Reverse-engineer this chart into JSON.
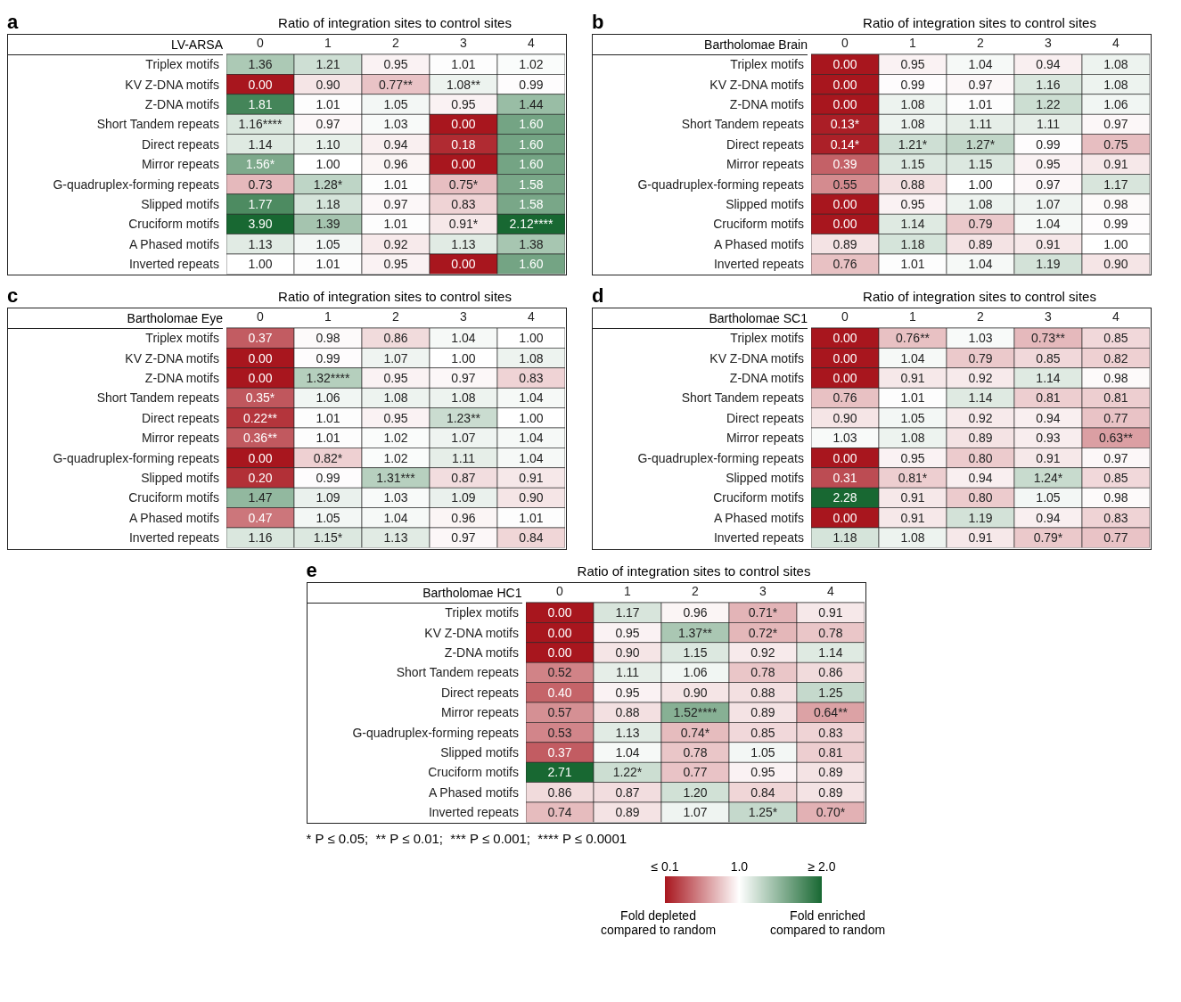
{
  "chart_data": [
    {
      "type": "heatmap",
      "title": "Ratio of integration sites to control sites",
      "ylabel": "LV-ARSA",
      "annotations": [
        "a"
      ],
      "categories": [
        "0",
        "1",
        "2",
        "3",
        "4"
      ],
      "y_categories": [
        "Triplex motifs",
        "KV Z-DNA motifs",
        "Z-DNA motifs",
        "Short Tandem repeats",
        "Direct repeats",
        "Mirror repeats",
        "G-quadruplex-forming repeats",
        "Slipped motifs",
        "Cruciform motifs",
        "A Phased motifs",
        "Inverted repeats"
      ],
      "cells": [
        [
          1.36,
          1.21,
          0.95,
          1.01,
          1.02
        ],
        [
          0.0,
          0.9,
          0.77,
          1.08,
          0.99
        ],
        [
          1.81,
          1.01,
          1.05,
          0.95,
          1.44
        ],
        [
          1.16,
          0.97,
          1.03,
          0.0,
          1.6
        ],
        [
          1.14,
          1.1,
          0.94,
          0.18,
          1.6
        ],
        [
          1.56,
          1.0,
          0.96,
          0.0,
          1.6
        ],
        [
          0.73,
          1.28,
          1.01,
          0.75,
          1.58
        ],
        [
          1.77,
          1.18,
          0.97,
          0.83,
          1.58
        ],
        [
          3.9,
          1.39,
          1.01,
          0.91,
          2.12
        ],
        [
          1.13,
          1.05,
          0.92,
          1.13,
          1.38
        ],
        [
          1.0,
          1.01,
          0.95,
          0.0,
          1.6
        ]
      ],
      "cell_labels": [
        [
          "1.36",
          "1.21",
          "0.95",
          "1.01",
          "1.02"
        ],
        [
          "0.00",
          "0.90",
          "0.77**",
          "1.08**",
          "0.99"
        ],
        [
          "1.81",
          "1.01",
          "1.05",
          "0.95",
          "1.44"
        ],
        [
          "1.16****",
          "0.97",
          "1.03",
          "0.00",
          "1.60"
        ],
        [
          "1.14",
          "1.10",
          "0.94",
          "0.18",
          "1.60"
        ],
        [
          "1.56*",
          "1.00",
          "0.96",
          "0.00",
          "1.60"
        ],
        [
          "0.73",
          "1.28*",
          "1.01",
          "0.75*",
          "1.58"
        ],
        [
          "1.77",
          "1.18",
          "0.97",
          "0.83",
          "1.58"
        ],
        [
          "3.90",
          "1.39",
          "1.01",
          "0.91*",
          "2.12****"
        ],
        [
          "1.13",
          "1.05",
          "0.92",
          "1.13",
          "1.38"
        ],
        [
          "1.00",
          "1.01",
          "0.95",
          "0.00",
          "1.60"
        ]
      ]
    },
    {
      "type": "heatmap",
      "title": "Ratio of integration sites to control sites",
      "ylabel": "Bartholomae Brain",
      "annotations": [
        "b"
      ],
      "categories": [
        "0",
        "1",
        "2",
        "3",
        "4"
      ],
      "y_categories": [
        "Triplex motifs",
        "KV Z-DNA motifs",
        "Z-DNA motifs",
        "Short Tandem repeats",
        "Direct repeats",
        "Mirror repeats",
        "G-quadruplex-forming repeats",
        "Slipped motifs",
        "Cruciform motifs",
        "A Phased motifs",
        "Inverted repeats"
      ],
      "cells": [
        [
          0.0,
          0.95,
          1.04,
          0.94,
          1.08
        ],
        [
          0.0,
          0.99,
          0.97,
          1.16,
          1.08
        ],
        [
          0.0,
          1.08,
          1.01,
          1.22,
          1.06
        ],
        [
          0.13,
          1.08,
          1.11,
          1.11,
          0.97
        ],
        [
          0.14,
          1.21,
          1.27,
          0.99,
          0.75
        ],
        [
          0.39,
          1.15,
          1.15,
          0.95,
          0.91
        ],
        [
          0.55,
          0.88,
          1.0,
          0.97,
          1.17
        ],
        [
          0.0,
          0.95,
          1.08,
          1.07,
          0.98
        ],
        [
          0.0,
          1.14,
          0.79,
          1.04,
          0.99
        ],
        [
          0.89,
          1.18,
          0.89,
          0.91,
          1.0
        ],
        [
          0.76,
          1.01,
          1.04,
          1.19,
          0.9
        ]
      ],
      "cell_labels": [
        [
          "0.00",
          "0.95",
          "1.04",
          "0.94",
          "1.08"
        ],
        [
          "0.00",
          "0.99",
          "0.97",
          "1.16",
          "1.08"
        ],
        [
          "0.00",
          "1.08",
          "1.01",
          "1.22",
          "1.06"
        ],
        [
          "0.13*",
          "1.08",
          "1.11",
          "1.11",
          "0.97"
        ],
        [
          "0.14*",
          "1.21*",
          "1.27*",
          "0.99",
          "0.75"
        ],
        [
          "0.39",
          "1.15",
          "1.15",
          "0.95",
          "0.91"
        ],
        [
          "0.55",
          "0.88",
          "1.00",
          "0.97",
          "1.17"
        ],
        [
          "0.00",
          "0.95",
          "1.08",
          "1.07",
          "0.98"
        ],
        [
          "0.00",
          "1.14",
          "0.79",
          "1.04",
          "0.99"
        ],
        [
          "0.89",
          "1.18",
          "0.89",
          "0.91",
          "1.00"
        ],
        [
          "0.76",
          "1.01",
          "1.04",
          "1.19",
          "0.90"
        ]
      ]
    },
    {
      "type": "heatmap",
      "title": "Ratio of integration sites to control sites",
      "ylabel": "Bartholomae Eye",
      "annotations": [
        "c"
      ],
      "categories": [
        "0",
        "1",
        "2",
        "3",
        "4"
      ],
      "y_categories": [
        "Triplex motifs",
        "KV Z-DNA motifs",
        "Z-DNA motifs",
        "Short Tandem repeats",
        "Direct repeats",
        "Mirror repeats",
        "G-quadruplex-forming repeats",
        "Slipped motifs",
        "Cruciform motifs",
        "A Phased motifs",
        "Inverted repeats"
      ],
      "cells": [
        [
          0.37,
          0.98,
          0.86,
          1.04,
          1.0
        ],
        [
          0.0,
          0.99,
          1.07,
          1.0,
          1.08
        ],
        [
          0.0,
          1.32,
          0.95,
          0.97,
          0.83
        ],
        [
          0.35,
          1.06,
          1.08,
          1.08,
          1.04
        ],
        [
          0.22,
          1.01,
          0.95,
          1.23,
          1.0
        ],
        [
          0.36,
          1.01,
          1.02,
          1.07,
          1.04
        ],
        [
          0.0,
          0.82,
          1.02,
          1.11,
          1.04
        ],
        [
          0.2,
          0.99,
          1.31,
          0.87,
          0.91
        ],
        [
          1.47,
          1.09,
          1.03,
          1.09,
          0.9
        ],
        [
          0.47,
          1.05,
          1.04,
          0.96,
          1.01
        ],
        [
          1.16,
          1.15,
          1.13,
          0.97,
          0.84
        ]
      ],
      "cell_labels": [
        [
          "0.37",
          "0.98",
          "0.86",
          "1.04",
          "1.00"
        ],
        [
          "0.00",
          "0.99",
          "1.07",
          "1.00",
          "1.08"
        ],
        [
          "0.00",
          "1.32****",
          "0.95",
          "0.97",
          "0.83"
        ],
        [
          "0.35*",
          "1.06",
          "1.08",
          "1.08",
          "1.04"
        ],
        [
          "0.22**",
          "1.01",
          "0.95",
          "1.23**",
          "1.00"
        ],
        [
          "0.36**",
          "1.01",
          "1.02",
          "1.07",
          "1.04"
        ],
        [
          "0.00",
          "0.82*",
          "1.02",
          "1.11",
          "1.04"
        ],
        [
          "0.20",
          "0.99",
          "1.31***",
          "0.87",
          "0.91"
        ],
        [
          "1.47",
          "1.09",
          "1.03",
          "1.09",
          "0.90"
        ],
        [
          "0.47",
          "1.05",
          "1.04",
          "0.96",
          "1.01"
        ],
        [
          "1.16",
          "1.15*",
          "1.13",
          "0.97",
          "0.84"
        ]
      ]
    },
    {
      "type": "heatmap",
      "title": "Ratio of integration sites to control sites",
      "ylabel": "Bartholomae SC1",
      "annotations": [
        "d"
      ],
      "categories": [
        "0",
        "1",
        "2",
        "3",
        "4"
      ],
      "y_categories": [
        "Triplex motifs",
        "KV Z-DNA motifs",
        "Z-DNA motifs",
        "Short Tandem repeats",
        "Direct repeats",
        "Mirror repeats",
        "G-quadruplex-forming repeats",
        "Slipped motifs",
        "Cruciform motifs",
        "A Phased motifs",
        "Inverted repeats"
      ],
      "cells": [
        [
          0.0,
          0.76,
          1.03,
          0.73,
          0.85
        ],
        [
          0.0,
          1.04,
          0.79,
          0.85,
          0.82
        ],
        [
          0.0,
          0.91,
          0.92,
          1.14,
          0.98
        ],
        [
          0.76,
          1.01,
          1.14,
          0.81,
          0.81
        ],
        [
          0.9,
          1.05,
          0.92,
          0.94,
          0.77
        ],
        [
          1.03,
          1.08,
          0.89,
          0.93,
          0.63
        ],
        [
          0.0,
          0.95,
          0.8,
          0.91,
          0.97
        ],
        [
          0.31,
          0.81,
          0.94,
          1.24,
          0.85
        ],
        [
          2.28,
          0.91,
          0.8,
          1.05,
          0.98
        ],
        [
          0.0,
          0.91,
          1.19,
          0.94,
          0.83
        ],
        [
          1.18,
          1.08,
          0.91,
          0.79,
          0.77
        ]
      ],
      "cell_labels": [
        [
          "0.00",
          "0.76**",
          "1.03",
          "0.73**",
          "0.85"
        ],
        [
          "0.00",
          "1.04",
          "0.79",
          "0.85",
          "0.82"
        ],
        [
          "0.00",
          "0.91",
          "0.92",
          "1.14",
          "0.98"
        ],
        [
          "0.76",
          "1.01",
          "1.14",
          "0.81",
          "0.81"
        ],
        [
          "0.90",
          "1.05",
          "0.92",
          "0.94",
          "0.77"
        ],
        [
          "1.03",
          "1.08",
          "0.89",
          "0.93",
          "0.63**"
        ],
        [
          "0.00",
          "0.95",
          "0.80",
          "0.91",
          "0.97"
        ],
        [
          "0.31",
          "0.81*",
          "0.94",
          "1.24*",
          "0.85"
        ],
        [
          "2.28",
          "0.91",
          "0.80",
          "1.05",
          "0.98"
        ],
        [
          "0.00",
          "0.91",
          "1.19",
          "0.94",
          "0.83"
        ],
        [
          "1.18",
          "1.08",
          "0.91",
          "0.79*",
          "0.77"
        ]
      ]
    },
    {
      "type": "heatmap",
      "title": "Ratio of integration sites to control sites",
      "ylabel": "Bartholomae HC1",
      "annotations": [
        "e",
        "* P ≤ 0.05;  ** P ≤ 0.01;  *** P ≤ 0.001;  **** P ≤ 0.0001",
        "Fold depleted compared to random",
        "Fold enriched compared to random"
      ],
      "categories": [
        "0",
        "1",
        "2",
        "3",
        "4"
      ],
      "y_categories": [
        "Triplex motifs",
        "KV Z-DNA motifs",
        "Z-DNA motifs",
        "Short Tandem repeats",
        "Direct repeats",
        "Mirror repeats",
        "G-quadruplex-forming repeats",
        "Slipped motifs",
        "Cruciform motifs",
        "A Phased motifs",
        "Inverted repeats"
      ],
      "cells": [
        [
          0.0,
          1.17,
          0.96,
          0.71,
          0.91
        ],
        [
          0.0,
          0.95,
          1.37,
          0.72,
          0.78
        ],
        [
          0.0,
          0.9,
          1.15,
          0.92,
          1.14
        ],
        [
          0.52,
          1.11,
          1.06,
          0.78,
          0.86
        ],
        [
          0.4,
          0.95,
          0.9,
          0.88,
          1.25
        ],
        [
          0.57,
          0.88,
          1.52,
          0.89,
          0.64
        ],
        [
          0.53,
          1.13,
          0.74,
          0.85,
          0.83
        ],
        [
          0.37,
          1.04,
          0.78,
          1.05,
          0.81
        ],
        [
          2.71,
          1.22,
          0.77,
          0.95,
          0.89
        ],
        [
          0.86,
          0.87,
          1.2,
          0.84,
          0.89
        ],
        [
          0.74,
          0.89,
          1.07,
          1.25,
          0.7
        ]
      ],
      "cell_labels": [
        [
          "0.00",
          "1.17",
          "0.96",
          "0.71*",
          "0.91"
        ],
        [
          "0.00",
          "0.95",
          "1.37**",
          "0.72*",
          "0.78"
        ],
        [
          "0.00",
          "0.90",
          "1.15",
          "0.92",
          "1.14"
        ],
        [
          "0.52",
          "1.11",
          "1.06",
          "0.78",
          "0.86"
        ],
        [
          "0.40",
          "0.95",
          "0.90",
          "0.88",
          "1.25"
        ],
        [
          "0.57",
          "0.88",
          "1.52****",
          "0.89",
          "0.64**"
        ],
        [
          "0.53",
          "1.13",
          "0.74*",
          "0.85",
          "0.83"
        ],
        [
          "0.37",
          "1.04",
          "0.78",
          "1.05",
          "0.81"
        ],
        [
          "2.71",
          "1.22*",
          "0.77",
          "0.95",
          "0.89"
        ],
        [
          "0.86",
          "0.87",
          "1.20",
          "0.84",
          "0.89"
        ],
        [
          "0.74",
          "0.89",
          "1.07",
          "1.25*",
          "0.70*"
        ]
      ],
      "clim": [
        0.1,
        2.0
      ],
      "cticks": [
        {
          "value": 0.1,
          "label": "≤ 0.1"
        },
        {
          "value": 1.0,
          "label": "1.0"
        },
        {
          "value": 2.0,
          "label": "≥ 2.0"
        }
      ]
    }
  ]
}
